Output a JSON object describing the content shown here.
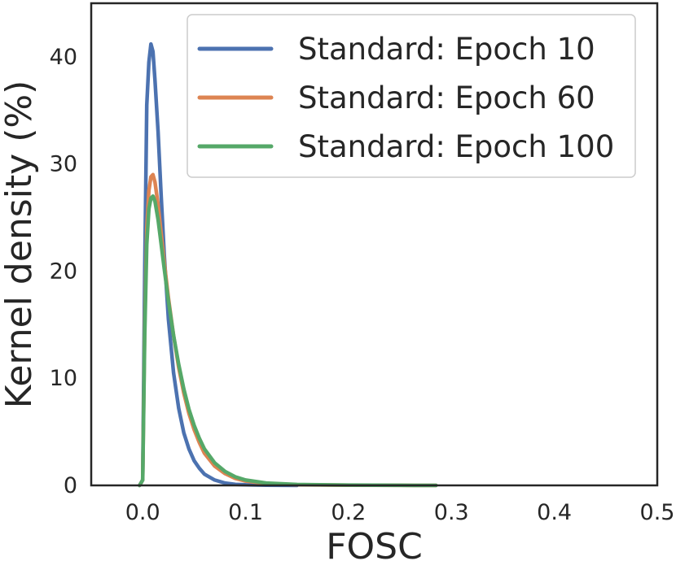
{
  "chart_data": {
    "type": "line",
    "title": "",
    "xlabel": "FOSC",
    "ylabel": "Kernel density (%)",
    "xlim": [
      -0.05,
      0.5
    ],
    "ylim": [
      0,
      45
    ],
    "xticks": [
      0.0,
      0.1,
      0.2,
      0.3,
      0.4,
      0.5
    ],
    "xtick_labels": [
      "0.0",
      "0.1",
      "0.2",
      "0.3",
      "0.4",
      "0.5"
    ],
    "yticks": [
      0,
      10,
      20,
      30,
      40
    ],
    "ytick_labels": [
      "0",
      "10",
      "20",
      "30",
      "40"
    ],
    "grid": false,
    "legend_position": "top-right",
    "series": [
      {
        "name": "Standard: Epoch 10",
        "color": "#4c72b0",
        "x": [
          -0.003,
          0.0,
          0.002,
          0.004,
          0.006,
          0.008,
          0.01,
          0.012,
          0.015,
          0.018,
          0.021,
          0.025,
          0.03,
          0.035,
          0.04,
          0.045,
          0.05,
          0.055,
          0.06,
          0.07,
          0.08,
          0.09,
          0.1,
          0.12,
          0.15
        ],
        "y": [
          0,
          0.5,
          20,
          35.5,
          39.5,
          41.2,
          40.5,
          37.8,
          33,
          27,
          21.5,
          15.5,
          10.5,
          7.2,
          4.9,
          3.4,
          2.3,
          1.6,
          1.05,
          0.5,
          0.22,
          0.1,
          0.05,
          0.02,
          0
        ]
      },
      {
        "name": "Standard: Epoch 60",
        "color": "#dd8452",
        "x": [
          -0.003,
          0.0,
          0.002,
          0.004,
          0.006,
          0.008,
          0.01,
          0.012,
          0.015,
          0.018,
          0.021,
          0.025,
          0.03,
          0.035,
          0.04,
          0.045,
          0.05,
          0.055,
          0.06,
          0.07,
          0.08,
          0.09,
          0.1,
          0.12,
          0.15,
          0.2,
          0.25,
          0.285
        ],
        "y": [
          0,
          0.5,
          15,
          24,
          27.5,
          28.8,
          29.0,
          28.3,
          26.2,
          23.5,
          20.8,
          17.5,
          14.0,
          11.0,
          8.6,
          6.7,
          5.2,
          4.0,
          3.0,
          1.8,
          1.1,
          0.65,
          0.4,
          0.18,
          0.06,
          0.02,
          0.01,
          0
        ]
      },
      {
        "name": "Standard: Epoch 100",
        "color": "#55a868",
        "x": [
          -0.003,
          0.0,
          0.002,
          0.004,
          0.006,
          0.008,
          0.01,
          0.012,
          0.015,
          0.018,
          0.021,
          0.025,
          0.03,
          0.035,
          0.04,
          0.045,
          0.05,
          0.055,
          0.06,
          0.07,
          0.08,
          0.09,
          0.1,
          0.12,
          0.15,
          0.2,
          0.25,
          0.285
        ],
        "y": [
          0,
          0.5,
          14,
          22.5,
          25.8,
          26.8,
          27.0,
          26.5,
          24.8,
          22.5,
          20.2,
          17.2,
          14.0,
          11.3,
          9.0,
          7.1,
          5.6,
          4.4,
          3.4,
          2.1,
          1.3,
          0.8,
          0.5,
          0.22,
          0.08,
          0.03,
          0.01,
          0
        ]
      }
    ]
  }
}
